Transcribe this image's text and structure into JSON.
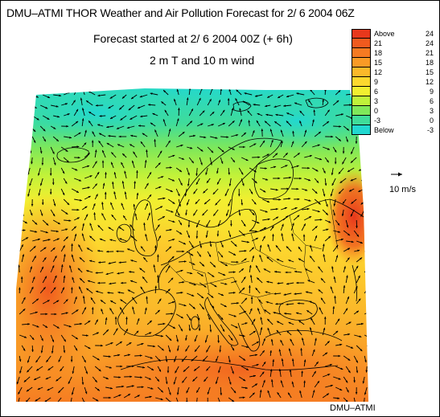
{
  "header": {
    "title": "DMU–ATMI THOR Weather and Air Pollution Forecast for  2/ 6 2004  06Z",
    "subtitle": "Forecast started at  2/ 6 2004  00Z (+ 6h)",
    "field": "2 m T and 10 m wind"
  },
  "legend": {
    "units_hint": "temperature classes",
    "entries": [
      {
        "lo": "Above",
        "hi": "24",
        "color": "#e8381c"
      },
      {
        "lo": "21",
        "hi": "24",
        "color": "#f05a1e"
      },
      {
        "lo": "18",
        "hi": "21",
        "color": "#f57a22"
      },
      {
        "lo": "15",
        "hi": "18",
        "color": "#f99a26"
      },
      {
        "lo": "12",
        "hi": "15",
        "color": "#fbb92a"
      },
      {
        "lo": "9",
        "hi": "12",
        "color": "#fdd82e"
      },
      {
        "lo": "6",
        "hi": "9",
        "color": "#f2ef30"
      },
      {
        "lo": "3",
        "hi": "6",
        "color": "#bff23a"
      },
      {
        "lo": "0",
        "hi": "3",
        "color": "#7fe85a"
      },
      {
        "lo": "-3",
        "hi": "0",
        "color": "#3fdc9a"
      },
      {
        "lo": "Below",
        "hi": "-3",
        "color": "#22d8d0"
      }
    ]
  },
  "reference_vector": {
    "label": "10 m/s"
  },
  "credit": "DMU–ATMI"
}
